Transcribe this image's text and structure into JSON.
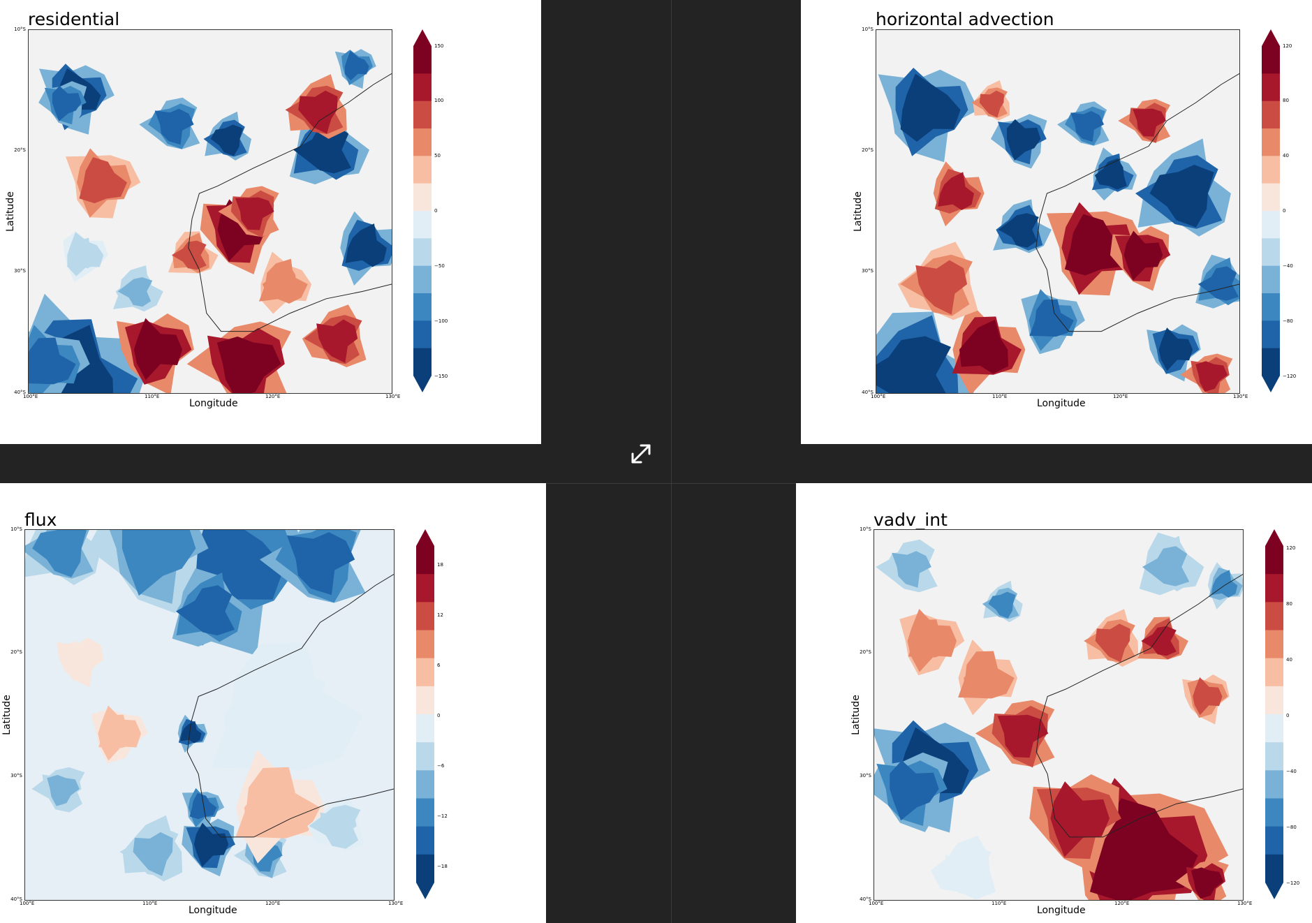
{
  "colors": {
    "background": "#232323",
    "panel": "#ffffff",
    "cmap": [
      "#0a3f7a",
      "#1f63a8",
      "#3d87c0",
      "#79b2d6",
      "#b9d8ea",
      "#e2eef5",
      "#f8e6dd",
      "#f7bea3",
      "#e8896a",
      "#cb4c43",
      "#a8182c",
      "#7d0221"
    ]
  },
  "icons": {
    "expand": "expand-arrows-icon"
  },
  "panels": [
    {
      "id": "residential",
      "title": "residential",
      "xlabel": "Longitude",
      "ylabel": "Latitude",
      "xticks": [
        "100°E",
        "110°E",
        "120°E",
        "130°E"
      ],
      "yticks": [
        "10°S",
        "20°S",
        "30°S",
        "40°S"
      ],
      "cbar_ticks": [
        "150",
        "100",
        "50",
        "0",
        "−50",
        "−100",
        "−150"
      ]
    },
    {
      "id": "horizontal-advection",
      "title": "horizontal advection",
      "xlabel": "Longitude",
      "ylabel": "Latitude",
      "xticks": [
        "100°E",
        "110°E",
        "120°E",
        "130°E"
      ],
      "yticks": [
        "10°S",
        "20°S",
        "30°S",
        "40°S"
      ],
      "cbar_ticks": [
        "120",
        "80",
        "40",
        "0",
        "−40",
        "−80",
        "−120"
      ]
    },
    {
      "id": "flux",
      "title": "flux",
      "xlabel": "Longitude",
      "ylabel": "Latitude",
      "xticks": [
        "100°E",
        "110°E",
        "120°E",
        "130°E"
      ],
      "yticks": [
        "10°S",
        "20°S",
        "30°S",
        "40°S"
      ],
      "cbar_ticks": [
        "18",
        "12",
        "6",
        "0",
        "−6",
        "−12",
        "−18"
      ]
    },
    {
      "id": "vadv-int",
      "title": "vadv_int",
      "xlabel": "Longitude",
      "ylabel": "Latitude",
      "xticks": [
        "100°E",
        "110°E",
        "120°E",
        "130°E"
      ],
      "yticks": [
        "10°S",
        "20°S",
        "30°S",
        "40°S"
      ],
      "cbar_ticks": [
        "120",
        "80",
        "40",
        "0",
        "−40",
        "−80",
        "−120"
      ]
    }
  ]
}
